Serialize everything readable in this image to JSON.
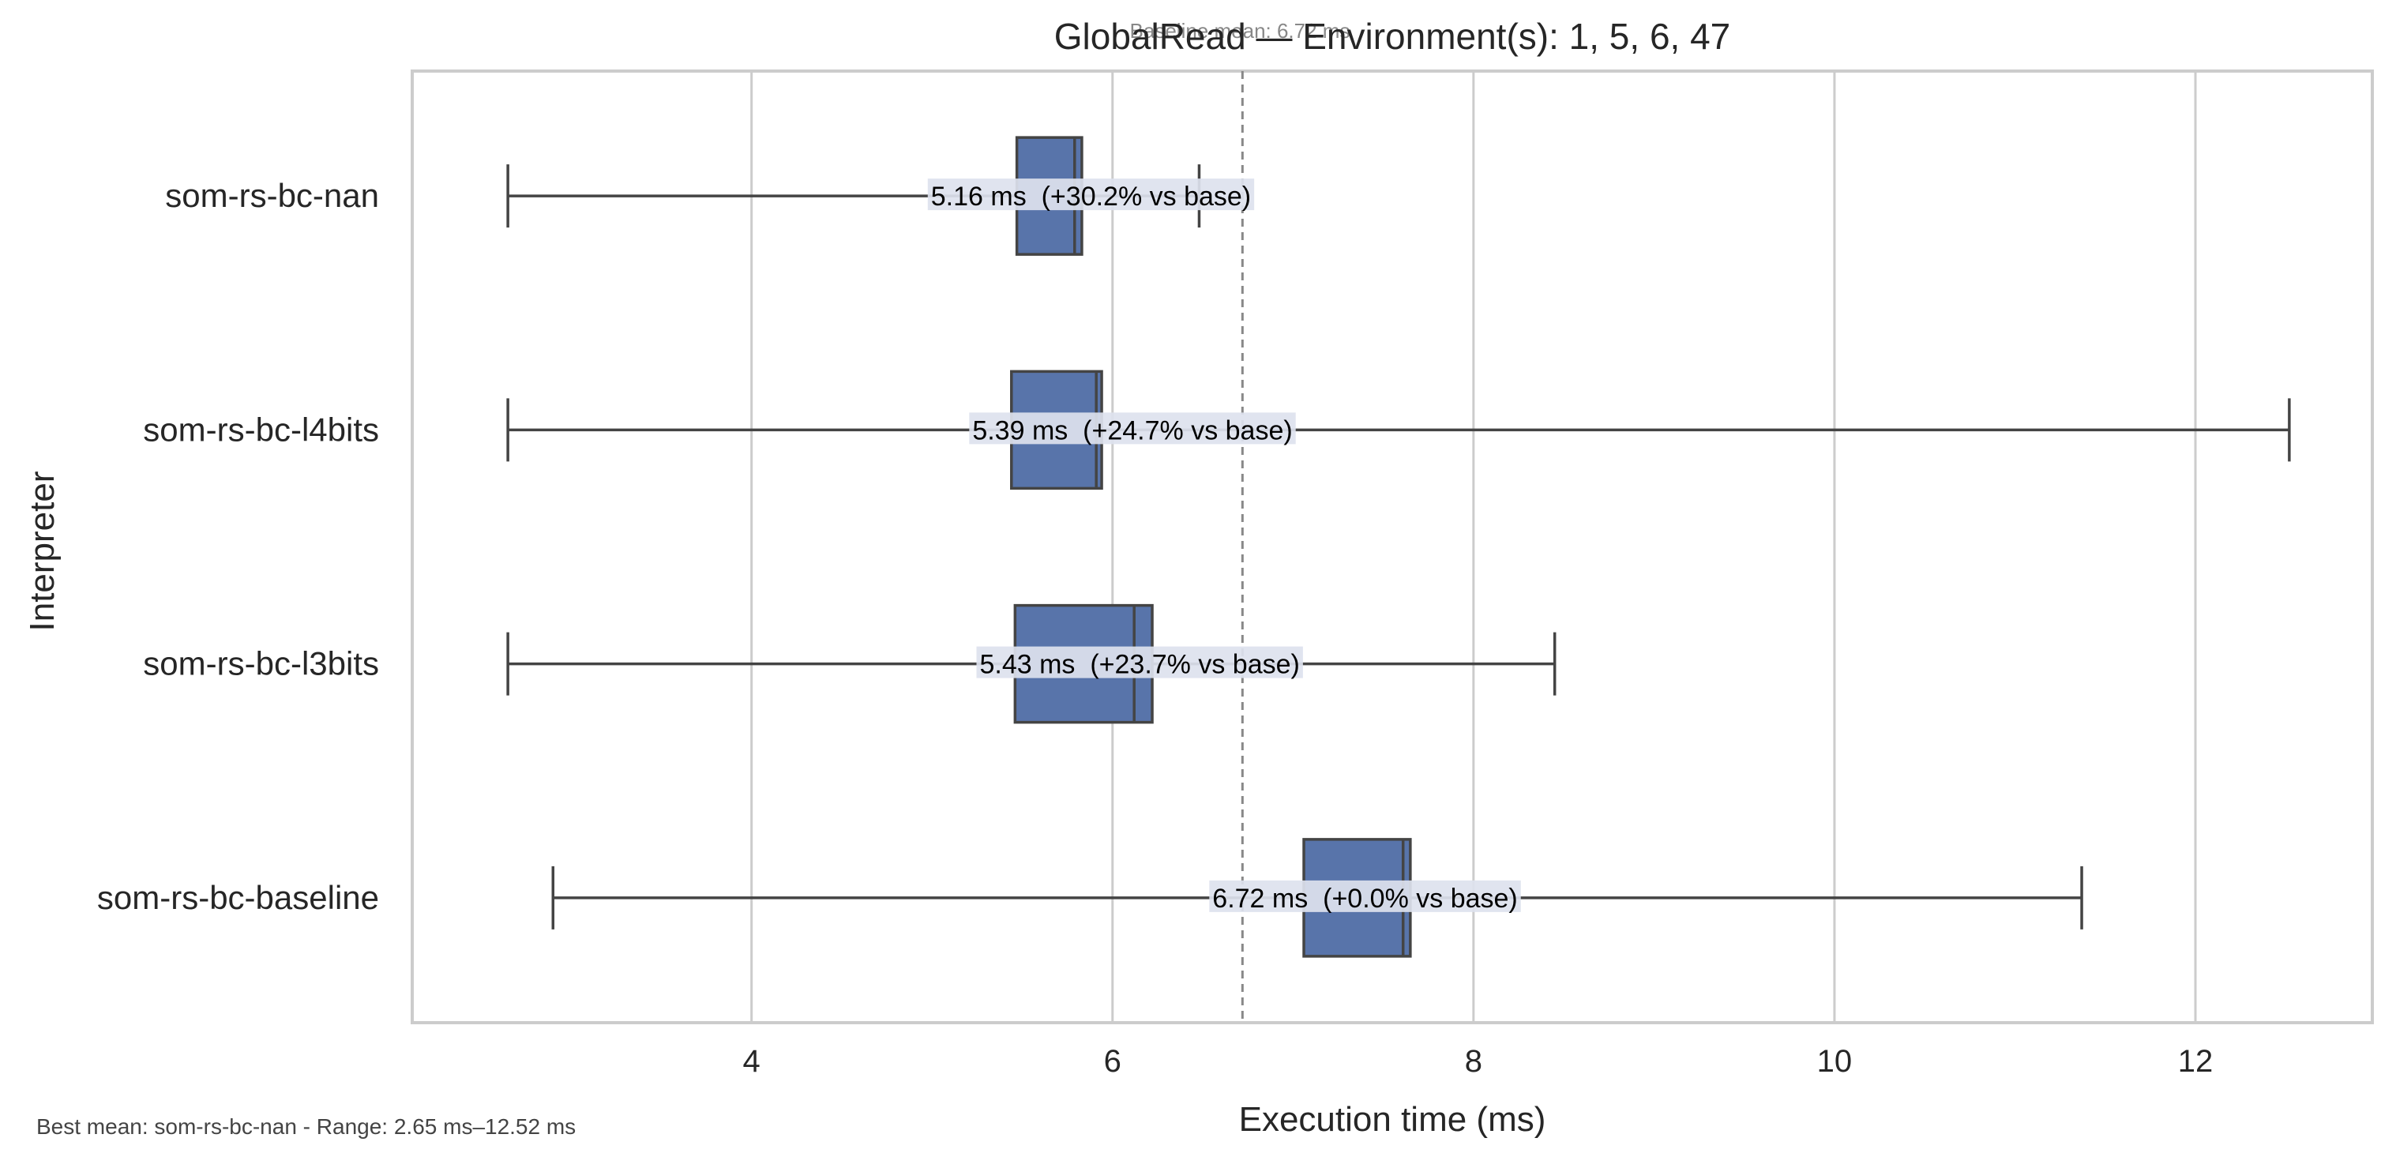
{
  "chart_data": {
    "type": "boxplot",
    "orientation": "horizontal",
    "title": "GlobalRead — Environment(s): 1, 5, 6, 47",
    "baseline_label": "Baseline mean: 6.72 ms",
    "baseline_value": 6.72,
    "xlabel": "Execution time (ms)",
    "ylabel": "Interpreter",
    "xlim": [
      2.12,
      12.98
    ],
    "xticks": [
      4,
      6,
      8,
      10,
      12
    ],
    "grid": true,
    "footnote": "Best mean: som-rs-bc-nan - Range: 2.65 ms–12.52 ms",
    "colors": {
      "box": "#5874aa",
      "box_edge": "#444444",
      "grid": "#cccccc",
      "baseline": "#888888",
      "label_bg": "#dde2ee"
    },
    "series": [
      {
        "name": "som-rs-bc-nan",
        "whisker_low": 2.65,
        "q1": 5.47,
        "median": 5.79,
        "q3": 5.83,
        "whisker_high": 6.48,
        "annotation": "5.16 ms  (+30.2% vs base)",
        "annotation_x": 5.16
      },
      {
        "name": "som-rs-bc-l4bits",
        "whisker_low": 2.65,
        "q1": 5.44,
        "median": 5.91,
        "q3": 5.94,
        "whisker_high": 12.52,
        "annotation": "5.39 ms  (+24.7% vs base)",
        "annotation_x": 5.39
      },
      {
        "name": "som-rs-bc-l3bits",
        "whisker_low": 2.65,
        "q1": 5.46,
        "median": 6.12,
        "q3": 6.22,
        "whisker_high": 8.45,
        "annotation": "5.43 ms  (+23.7% vs base)",
        "annotation_x": 5.43
      },
      {
        "name": "som-rs-bc-baseline",
        "whisker_low": 2.9,
        "q1": 7.06,
        "median": 7.61,
        "q3": 7.65,
        "whisker_high": 11.37,
        "annotation": "6.72 ms  (+0.0% vs base)",
        "annotation_x": 6.72
      }
    ]
  }
}
